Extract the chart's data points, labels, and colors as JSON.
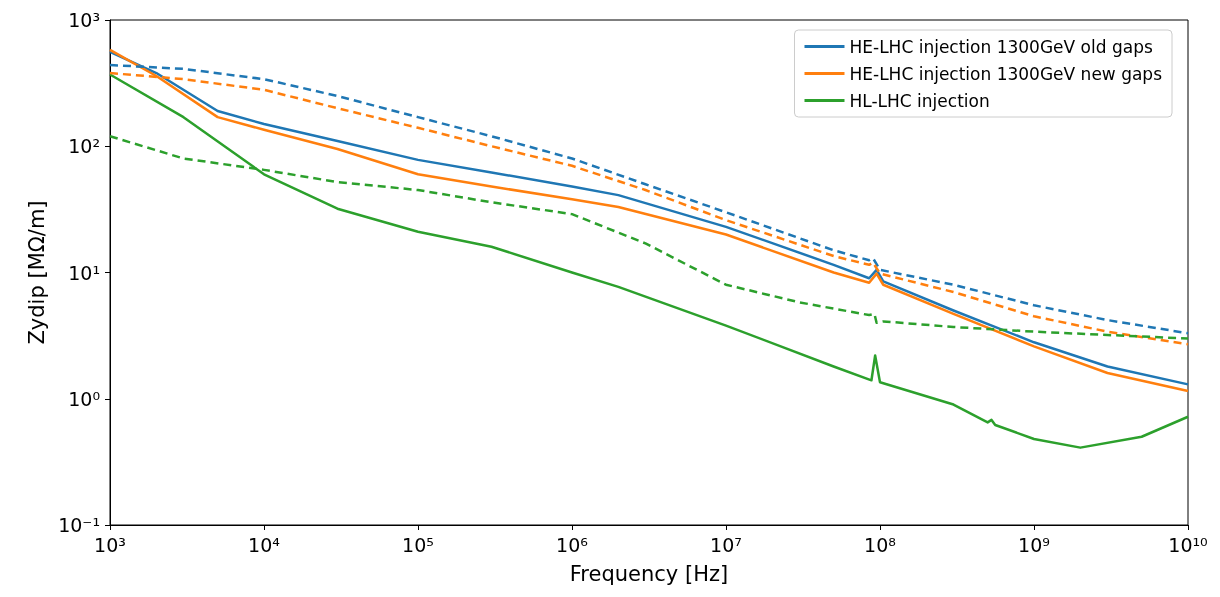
{
  "chart_data": {
    "type": "line",
    "xlabel": "Frequency [Hz]",
    "ylabel": "Zydip [MΩ/m]",
    "log": "xy",
    "grid": false,
    "legend": "top right",
    "xlim": [
      1000,
      10000000000
    ],
    "ylim": [
      0.1,
      1000
    ],
    "xticks": [
      {
        "value": 1000,
        "label": "10³"
      },
      {
        "value": 10000,
        "label": "10⁴"
      },
      {
        "value": 100000,
        "label": "10⁵"
      },
      {
        "value": 1000000,
        "label": "10⁶"
      },
      {
        "value": 10000000,
        "label": "10⁷"
      },
      {
        "value": 100000000,
        "label": "10⁸"
      },
      {
        "value": 1000000000,
        "label": "10⁹"
      },
      {
        "value": 10000000000,
        "label": "10¹⁰"
      }
    ],
    "yticks": [
      {
        "value": 0.1,
        "label": "10⁻¹"
      },
      {
        "value": 1,
        "label": "10⁰"
      },
      {
        "value": 10,
        "label": "10¹"
      },
      {
        "value": 100,
        "label": "10²"
      },
      {
        "value": 1000,
        "label": "10³"
      }
    ],
    "series": [
      {
        "name": "HE-LHC injection 1300GeV old gaps",
        "color": "#1f77b4",
        "line_style": "solid",
        "x": [
          1000,
          2000,
          5000,
          10000,
          30000,
          100000,
          300000,
          1000000,
          2000000,
          10000000,
          50000000,
          85000000,
          95000000,
          105000000,
          300000000,
          1000000000,
          3000000000,
          10000000000
        ],
        "values": [
          560,
          380,
          190,
          150,
          110,
          78,
          62,
          48,
          41,
          23,
          11.5,
          9,
          10.5,
          8.5,
          5,
          2.8,
          1.8,
          1.3
        ]
      },
      {
        "name": "HE-LHC injection 1300GeV new gaps",
        "color": "#ff7f0e",
        "line_style": "solid",
        "x": [
          1000,
          2000,
          5000,
          10000,
          30000,
          100000,
          300000,
          1000000,
          2000000,
          10000000,
          50000000,
          85000000,
          95000000,
          105000000,
          300000000,
          1000000000,
          3000000000,
          10000000000
        ],
        "values": [
          580,
          360,
          170,
          135,
          95,
          60,
          48,
          38,
          33,
          20,
          10,
          8.3,
          9.8,
          8,
          4.7,
          2.6,
          1.6,
          1.15
        ]
      },
      {
        "name": "HL-LHC injection",
        "color": "#2ca02c",
        "line_style": "solid",
        "x": [
          1000,
          3000,
          10000,
          30000,
          100000,
          300000,
          1000000,
          2000000,
          10000000,
          50000000,
          88000000,
          93000000,
          100000000,
          300000000,
          500000000,
          530000000,
          560000000,
          1000000000,
          2000000000,
          5000000000,
          10000000000
        ],
        "values": [
          370,
          170,
          60,
          32,
          21,
          16,
          10,
          7.7,
          3.8,
          1.8,
          1.4,
          2.2,
          1.35,
          0.9,
          0.65,
          0.68,
          0.62,
          0.48,
          0.41,
          0.5,
          0.72
        ]
      },
      {
        "color": "#1f77b4",
        "line_style": "dashed",
        "x": [
          1000,
          3000,
          10000,
          30000,
          100000,
          300000,
          1000000,
          3000000,
          10000000,
          50000000,
          85000000,
          90000000,
          100000000,
          300000000,
          1000000000,
          3000000000,
          10000000000
        ],
        "values": [
          440,
          410,
          340,
          250,
          170,
          120,
          80,
          50,
          30,
          15,
          12.5,
          13,
          10.5,
          8,
          5.5,
          4.2,
          3.3
        ]
      },
      {
        "color": "#ff7f0e",
        "line_style": "dashed",
        "x": [
          1000,
          3000,
          10000,
          30000,
          100000,
          300000,
          1000000,
          3000000,
          10000000,
          50000000,
          85000000,
          90000000,
          100000000,
          300000000,
          1000000000,
          3000000000,
          10000000000
        ],
        "values": [
          380,
          340,
          280,
          200,
          140,
          100,
          70,
          45,
          26,
          13.5,
          11.5,
          12,
          9.8,
          7,
          4.5,
          3.4,
          2.7
        ]
      },
      {
        "color": "#2ca02c",
        "line_style": "dashed",
        "x": [
          1000,
          3000,
          10000,
          30000,
          100000,
          300000,
          1000000,
          3000000,
          10000000,
          30000000,
          85000000,
          92000000,
          95000000,
          105000000,
          300000000,
          1000000000,
          3000000000,
          10000000000
        ],
        "values": [
          120,
          80,
          65,
          52,
          45,
          36,
          29,
          17,
          8,
          5.8,
          4.6,
          4.7,
          4.0,
          4.1,
          3.7,
          3.4,
          3.2,
          3.0
        ]
      }
    ]
  }
}
